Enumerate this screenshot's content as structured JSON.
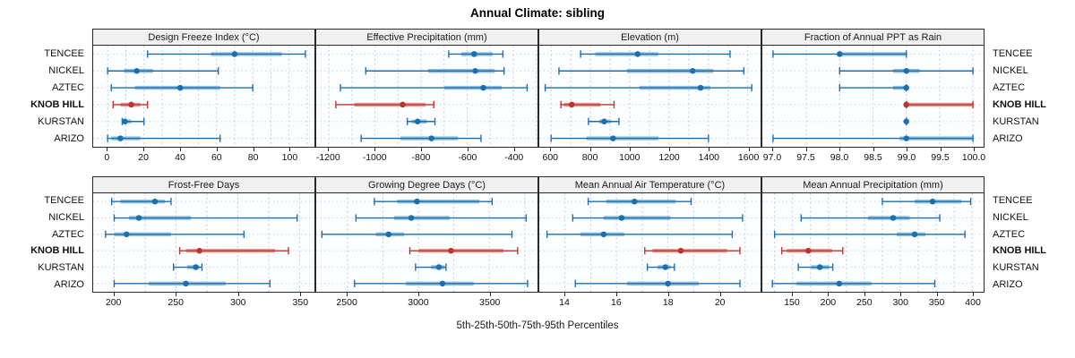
{
  "title": "Annual Climate: sibling",
  "caption": "5th-25th-50th-75th-95th Percentiles",
  "colors": {
    "series_blue": "#1c6fae",
    "series_blue_light": "#93c1de",
    "highlight_red": "#bb352e",
    "highlight_red_light": "#dd9d97",
    "strip_bg": "#f0f0f0",
    "panel_border": "#2a2a2a",
    "grid_vertical": "#c3ccd4",
    "grid_horizontal": "#cdd5db"
  },
  "chart_data": {
    "type": "trellis-interval-dotplot",
    "note": "Each row shows 5th-25th-50th-75th-95th percentile intervals; dot = median",
    "sites": [
      "TENCEE",
      "NICKEL",
      "AZTEC",
      "KNOB HILL",
      "KURSTAN",
      "ARIZO"
    ],
    "highlight_site": "KNOB HILL",
    "percentiles": [
      5,
      25,
      50,
      75,
      95
    ],
    "panels": [
      {
        "title": "Design Freeze Index (°C)",
        "xlim": [
          -8,
          114
        ],
        "grid_step": 20,
        "minor_step": 10,
        "tick_values": [
          0,
          20,
          40,
          60,
          80,
          100
        ],
        "tick_labels": [
          "0",
          "20",
          "40",
          "60",
          "80",
          "100"
        ],
        "values": [
          [
            22,
            57,
            70,
            96,
            109
          ],
          [
            0,
            9,
            16,
            25,
            61
          ],
          [
            2,
            15,
            40,
            62,
            80
          ],
          [
            3,
            7,
            13,
            18,
            22
          ],
          [
            8,
            8.5,
            9.5,
            13,
            20
          ],
          [
            0,
            2,
            7,
            18,
            62
          ]
        ]
      },
      {
        "title": "Effective Precipitation (mm)",
        "xlim": [
          -1255,
          -295
        ],
        "grid_step": 200,
        "minor_step": 100,
        "tick_values": [
          -1200,
          -1000,
          -800,
          -600,
          -400
        ],
        "tick_labels": [
          "-1200",
          "-1000",
          "-800",
          "-600",
          "-400"
        ],
        "values": [
          [
            -680,
            -625,
            -570,
            -490,
            -445
          ],
          [
            -1040,
            -770,
            -565,
            -480,
            -440
          ],
          [
            -1150,
            -700,
            -530,
            -450,
            -340
          ],
          [
            -1170,
            -1090,
            -880,
            -780,
            -745
          ],
          [
            -860,
            -840,
            -815,
            -775,
            -740
          ],
          [
            -1060,
            -890,
            -755,
            -640,
            -540
          ]
        ]
      },
      {
        "title": "Elevation (m)",
        "xlim": [
          540,
          1665
        ],
        "grid_step": 200,
        "minor_step": 100,
        "tick_values": [
          600,
          800,
          1000,
          1200,
          1400,
          1600
        ],
        "tick_labels": [
          "600",
          "800",
          "1000",
          "1200",
          "1400",
          "1600"
        ],
        "values": [
          [
            750,
            825,
            1040,
            1145,
            1510
          ],
          [
            640,
            985,
            1320,
            1425,
            1580
          ],
          [
            570,
            1050,
            1360,
            1410,
            1620
          ],
          [
            650,
            665,
            705,
            850,
            920
          ],
          [
            790,
            845,
            870,
            905,
            945
          ],
          [
            600,
            780,
            915,
            1145,
            1400
          ]
        ]
      },
      {
        "title": "Fraction of Annual PPT as Rain",
        "xlim": [
          96.84,
          100.16
        ],
        "grid_step": 0.5,
        "minor_step": 0.5,
        "tick_values": [
          97.0,
          97.5,
          98.0,
          98.5,
          99.0,
          99.5,
          100.0
        ],
        "tick_labels": [
          "97.0",
          "97.5",
          "98.0",
          "98.5",
          "99.0",
          "99.5",
          "100.0"
        ],
        "values": [
          [
            97.0,
            98.0,
            98.0,
            99.0,
            99.0
          ],
          [
            98.0,
            98.8,
            99.0,
            99.2,
            100.0
          ],
          [
            98.0,
            98.8,
            99.0,
            99.0,
            99.0
          ],
          [
            99.0,
            99.0,
            99.0,
            100.0,
            100.0
          ],
          [
            99.0,
            99.0,
            99.0,
            99.0,
            99.0
          ],
          [
            97.0,
            98.9,
            99.0,
            100.0,
            100.0
          ]
        ]
      },
      {
        "title": "Frost-Free Days",
        "xlim": [
          183,
          362
        ],
        "grid_step": 50,
        "minor_step": 25,
        "tick_values": [
          200,
          250,
          300,
          350
        ],
        "tick_labels": [
          "200",
          "250",
          "300",
          "350"
        ],
        "values": [
          [
            198,
            205,
            233,
            241,
            246
          ],
          [
            200,
            212,
            220,
            262,
            348
          ],
          [
            193,
            200,
            210,
            246,
            305
          ],
          [
            253,
            258,
            269,
            330,
            341
          ],
          [
            248,
            259,
            266,
            269,
            271
          ],
          [
            200,
            228,
            258,
            290,
            326
          ]
        ]
      },
      {
        "title": "Growing Degree Days (°C)",
        "xlim": [
          2280,
          3840
        ],
        "grid_step": 500,
        "minor_step": 250,
        "tick_values": [
          2500,
          3000,
          3500
        ],
        "tick_labels": [
          "2500",
          "3000",
          "3500"
        ],
        "values": [
          [
            2690,
            2850,
            2990,
            3430,
            3520
          ],
          [
            2560,
            2830,
            2950,
            3220,
            3760
          ],
          [
            2320,
            2700,
            2790,
            2900,
            3660
          ],
          [
            2940,
            3000,
            3230,
            3600,
            3700
          ],
          [
            2980,
            3090,
            3145,
            3185,
            3195
          ],
          [
            2550,
            2910,
            3170,
            3390,
            3770
          ]
        ]
      },
      {
        "title": "Mean Annual Air Temperature (°C)",
        "xlim": [
          13.0,
          21.6
        ],
        "grid_step": 2,
        "minor_step": 1,
        "tick_values": [
          14,
          16,
          18,
          20
        ],
        "tick_labels": [
          "14",
          "16",
          "18",
          "20"
        ],
        "values": [
          [
            14.9,
            15.6,
            16.7,
            18.3,
            18.9
          ],
          [
            14.3,
            15.5,
            16.2,
            18.1,
            20.9
          ],
          [
            13.3,
            14.6,
            15.5,
            16.3,
            20.5
          ],
          [
            17.1,
            17.4,
            18.5,
            20.3,
            20.8
          ],
          [
            17.2,
            17.6,
            17.9,
            18.1,
            18.25
          ],
          [
            14.4,
            16.4,
            18.0,
            19.2,
            20.8
          ]
        ]
      },
      {
        "title": "Mean Annual Precipitation (mm)",
        "xlim": [
          108,
          416
        ],
        "grid_step": 50,
        "minor_step": 25,
        "tick_values": [
          150,
          200,
          250,
          300,
          350,
          400
        ],
        "tick_labels": [
          "150",
          "200",
          "250",
          "300",
          "350",
          "400"
        ],
        "values": [
          [
            275,
            320,
            345,
            385,
            398
          ],
          [
            162,
            255,
            290,
            313,
            355
          ],
          [
            125,
            295,
            320,
            335,
            390
          ],
          [
            135,
            142,
            172,
            205,
            220
          ],
          [
            158,
            176,
            188,
            201,
            206
          ],
          [
            122,
            155,
            215,
            260,
            348
          ]
        ]
      }
    ]
  }
}
